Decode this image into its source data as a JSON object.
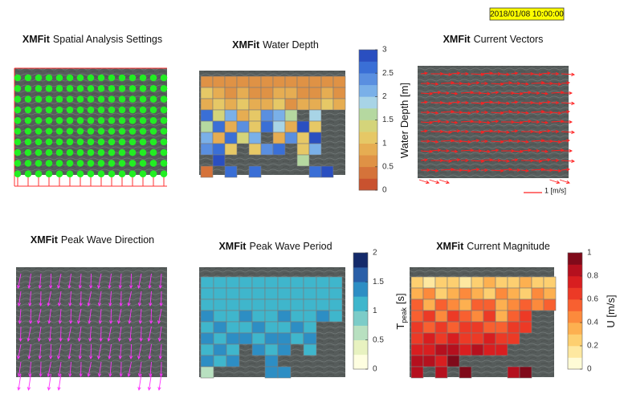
{
  "timestamp": "2018/01/08 10:00:00",
  "chart_data": [
    {
      "type": "grid-points",
      "title_prefix": "XMFit",
      "title": "Spatial Analysis Settings",
      "color": "#22ee22",
      "frame_color": "#ff3030"
    },
    {
      "type": "heatmap",
      "title_prefix": "XMFit",
      "title": "Water Depth",
      "colorbar_label": "Water Depth [m]",
      "zlim": [
        0,
        3
      ],
      "zticks": [
        0,
        0.5,
        1,
        1.5,
        2,
        2.5,
        3
      ],
      "colormap": [
        "#c9522f",
        "#d5733a",
        "#df9245",
        "#e6ad52",
        "#e6c866",
        "#d4d47a",
        "#b5d8a0",
        "#a8d4e6",
        "#7ab0e8",
        "#5a8fe0",
        "#3a6fd6",
        "#2a4fc0"
      ],
      "values": [
        [
          0.6,
          0.5,
          0.7,
          0.6,
          0.5,
          0.7,
          0.6,
          0.5,
          0.6,
          0.7,
          0.6,
          0.5
        ],
        [
          1.2,
          0.8,
          0.6,
          0.9,
          0.7,
          0.6,
          0.8,
          0.9,
          0.7,
          0.6,
          0.8,
          0.7
        ],
        [
          0.9,
          1.1,
          0.8,
          1.0,
          0.9,
          0.8,
          1.0,
          0.7,
          0.9,
          0.8,
          1.0,
          0.9
        ],
        [
          2.6,
          1.3,
          2.2,
          0.8,
          1.2,
          2.4,
          2.0,
          1.6,
          null,
          1.9,
          null,
          null
        ],
        [
          1.5,
          2.5,
          0.9,
          2.3,
          1.0,
          2.7,
          1.9,
          0.9,
          2.8,
          1.1,
          null,
          null
        ],
        [
          2.2,
          0.8,
          2.6,
          1.3,
          2.1,
          null,
          0.9,
          2.4,
          1.2,
          2.9,
          null,
          null
        ],
        [
          2.4,
          2.7,
          1.1,
          null,
          1.0,
          2.3,
          2.5,
          null,
          1.0,
          2.2,
          null,
          null
        ],
        [
          null,
          2.8,
          null,
          null,
          null,
          null,
          null,
          null,
          1.6,
          null,
          null,
          null
        ],
        [
          0.4,
          null,
          2.5,
          null,
          2.6,
          null,
          null,
          null,
          null,
          2.7,
          2.8,
          null
        ]
      ]
    },
    {
      "type": "vectors",
      "title_prefix": "XMFit",
      "title": "Current Vectors",
      "color": "#ff2020",
      "scale_label": "1 [m/s]"
    },
    {
      "type": "vectors",
      "title_prefix": "XMFit",
      "title": "Peak Wave Direction",
      "color": "#ff33ff"
    },
    {
      "type": "heatmap",
      "title_prefix": "XMFit",
      "title": "Peak Wave Period",
      "colorbar_label": "T",
      "colorbar_label_sub": "peak",
      "colorbar_label_unit": "[s]",
      "zlim": [
        0,
        2
      ],
      "zticks": [
        0,
        0.5,
        1,
        1.5,
        2
      ],
      "colormap": [
        "#fefee0",
        "#e8f2c0",
        "#b8e0c0",
        "#7cccc8",
        "#3fb6cc",
        "#2d8ec4",
        "#2a5fa8",
        "#142a6a"
      ],
      "values": [
        [
          1.1,
          1.0,
          1.1,
          1.0,
          1.1,
          1.0,
          1.1,
          1.0,
          1.1,
          1.0,
          1.1
        ],
        [
          1.0,
          1.1,
          1.0,
          1.1,
          1.0,
          1.1,
          1.0,
          1.1,
          1.0,
          1.1,
          1.0
        ],
        [
          1.1,
          1.0,
          1.1,
          1.0,
          1.1,
          1.0,
          1.1,
          1.0,
          1.1,
          1.0,
          1.1
        ],
        [
          1.3,
          1.1,
          1.0,
          1.3,
          1.1,
          1.0,
          1.3,
          1.1,
          1.0,
          1.3,
          1.1
        ],
        [
          1.1,
          1.3,
          1.1,
          1.1,
          1.3,
          1.0,
          1.1,
          1.3,
          1.1,
          null,
          null
        ],
        [
          1.3,
          1.1,
          1.3,
          1.3,
          1.1,
          1.3,
          1.3,
          1.1,
          1.3,
          null,
          null
        ],
        [
          1.1,
          1.3,
          1.1,
          null,
          1.3,
          1.1,
          1.3,
          null,
          1.1,
          null,
          null
        ],
        [
          1.3,
          1.1,
          1.3,
          null,
          null,
          1.3,
          null,
          null,
          null,
          null,
          null
        ],
        [
          0.7,
          null,
          null,
          null,
          null,
          1.3,
          1.3,
          null,
          null,
          null,
          null
        ]
      ]
    },
    {
      "type": "heatmap",
      "title_prefix": "XMFit",
      "title": "Current Magnitude",
      "colorbar_label": "U [m/s]",
      "zlim": [
        0,
        1
      ],
      "zticks": [
        0,
        0.2,
        0.4,
        0.6,
        0.8,
        1
      ],
      "colormap": [
        "#fffbd6",
        "#fee8a0",
        "#fdcf70",
        "#fdb050",
        "#fc8a3c",
        "#f86030",
        "#ec3a26",
        "#d81e20",
        "#b5101e",
        "#800a1a"
      ],
      "values": [
        [
          0.2,
          0.15,
          0.2,
          0.25,
          0.15,
          0.2,
          0.3,
          0.25,
          0.2,
          0.3,
          0.25,
          0.2
        ],
        [
          0.3,
          0.4,
          0.25,
          0.35,
          0.45,
          0.3,
          0.25,
          0.4,
          0.35,
          0.25,
          0.4,
          0.3
        ],
        [
          0.5,
          0.35,
          0.55,
          0.45,
          0.3,
          0.55,
          0.5,
          0.35,
          0.45,
          0.55,
          0.4,
          0.5
        ],
        [
          0.55,
          0.6,
          0.45,
          0.65,
          0.55,
          0.45,
          0.6,
          0.3,
          0.55,
          0.6,
          null,
          null
        ],
        [
          0.6,
          0.5,
          0.65,
          0.55,
          0.6,
          0.65,
          0.5,
          0.55,
          0.65,
          0.6,
          null,
          null
        ],
        [
          0.65,
          0.7,
          0.6,
          0.75,
          0.65,
          0.6,
          0.7,
          0.65,
          0.6,
          null,
          null,
          null
        ],
        [
          0.75,
          0.7,
          0.8,
          0.85,
          0.75,
          0.8,
          0.7,
          0.75,
          null,
          null,
          null,
          null
        ],
        [
          0.8,
          0.85,
          0.75,
          0.9,
          null,
          null,
          null,
          null,
          null,
          null,
          null,
          null
        ],
        [
          0.8,
          null,
          0.85,
          null,
          0.9,
          null,
          null,
          null,
          0.85,
          0.9,
          null,
          null
        ]
      ]
    }
  ]
}
